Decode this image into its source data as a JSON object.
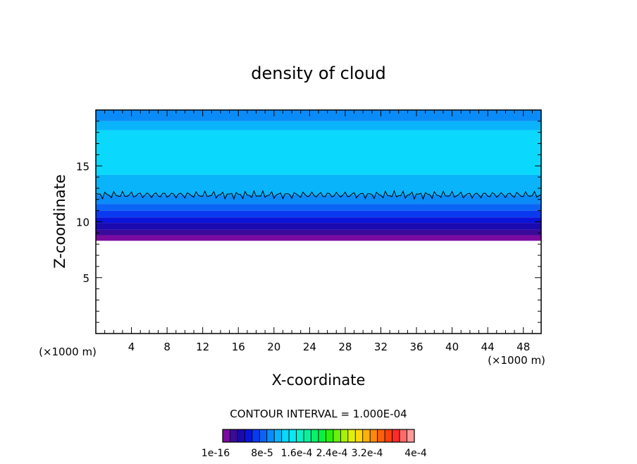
{
  "chart_data": {
    "type": "heatmap",
    "title": "density of cloud",
    "xlabel": "X-coordinate",
    "ylabel": "Z-coordinate",
    "x_unit": "(×1000 m)",
    "y_unit": "(×1000 m)",
    "xlim": [
      0,
      50
    ],
    "ylim": [
      0,
      20
    ],
    "x_ticks": [
      4,
      8,
      12,
      16,
      20,
      24,
      28,
      32,
      36,
      40,
      44,
      48
    ],
    "y_ticks": [
      5,
      10,
      15
    ],
    "contour_interval_label": "CONTOUR INTERVAL = 1.000E-04",
    "colorbar": {
      "colors": [
        "#7a0aa0",
        "#3a0a9a",
        "#1a0ab0",
        "#0a14d8",
        "#0a3af0",
        "#0a64f5",
        "#0a8cf8",
        "#0ab4fa",
        "#0ad8fc",
        "#0ae8f0",
        "#0af0c8",
        "#0af09a",
        "#0af06a",
        "#0af040",
        "#2af00a",
        "#6af00a",
        "#a8f00a",
        "#e0f00a",
        "#ffd80a",
        "#ffb00a",
        "#ff880a",
        "#ff600a",
        "#ff400a",
        "#ff2a2a",
        "#ff6a6a",
        "#ff9a9a"
      ],
      "labels": [
        "1e-16",
        "8e-5",
        "1.6e-4",
        "2.4e-4",
        "3.2e-4",
        "4e-4"
      ]
    },
    "cloud_bands": [
      {
        "z": [
          8.3,
          8.8
        ],
        "color": "#7a0aa0"
      },
      {
        "z": [
          8.8,
          9.3
        ],
        "color": "#3a0a9a"
      },
      {
        "z": [
          9.3,
          9.9
        ],
        "color": "#1a0ab0"
      },
      {
        "z": [
          9.9,
          10.4
        ],
        "color": "#0a14d8"
      },
      {
        "z": [
          10.4,
          11.0
        ],
        "color": "#0a3af0"
      },
      {
        "z": [
          11.0,
          11.6
        ],
        "color": "#0a64f5"
      },
      {
        "z": [
          11.6,
          12.4
        ],
        "color": "#0a8cf8"
      },
      {
        "z": [
          12.4,
          14.2
        ],
        "color": "#0ab4fa"
      },
      {
        "z": [
          14.2,
          18.2
        ],
        "color": "#0ad8fc"
      },
      {
        "z": [
          18.2,
          19.0
        ],
        "color": "#0ab4fa"
      },
      {
        "z": [
          19.0,
          20.0
        ],
        "color": "#0a8cf8"
      }
    ],
    "contour_level_z": 12.4
  }
}
